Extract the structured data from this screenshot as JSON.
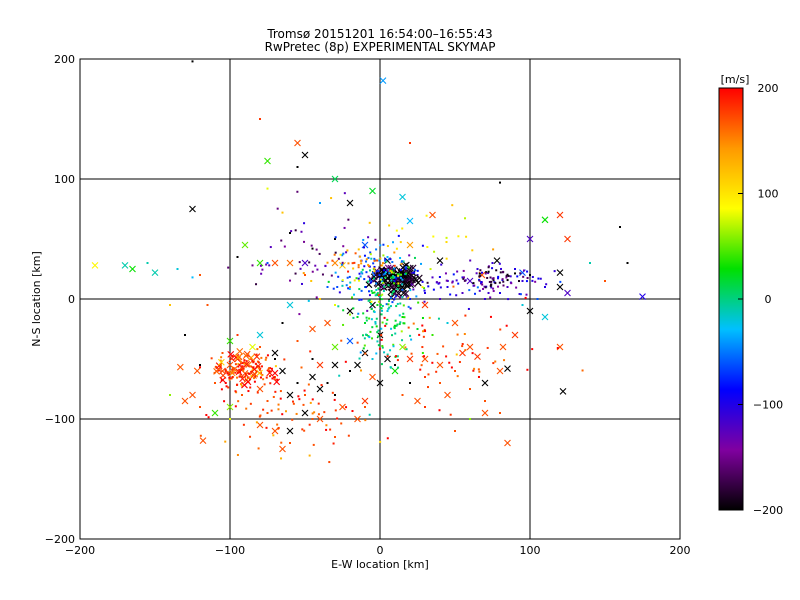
{
  "chart_data": {
    "type": "scatter",
    "title": "Tromsø 20151201 16:54:00–16:55:43",
    "subtitle": "RwPretec (8p) EXPERIMENTAL SKYMAP",
    "xlabel": "E-W location [km]",
    "ylabel": "N-S location [km]",
    "xlim": [
      -200,
      200
    ],
    "ylim": [
      -200,
      200
    ],
    "xticks": [
      "−200",
      "−100",
      "0",
      "100",
      "200"
    ],
    "yticks": [
      "−200",
      "−100",
      "0",
      "100",
      "200"
    ],
    "grid": true,
    "colorbar": {
      "label": "[m/s]",
      "range": [
        -200,
        200
      ],
      "ticks": [
        "200",
        "100",
        "0",
        "−100",
        "−200"
      ],
      "colors": [
        "#000000",
        "#8000a0",
        "#0000ff",
        "#00c0ff",
        "#00e000",
        "#ffff00",
        "#ff9900",
        "#ff0000"
      ]
    },
    "series": [
      {
        "marker": "x",
        "points": [
          [
            2,
            182,
            -40
          ],
          [
            -30,
            100,
            10
          ],
          [
            -20,
            80,
            -200
          ],
          [
            -5,
            90,
            20
          ],
          [
            15,
            85,
            -20
          ],
          [
            35,
            70,
            170
          ],
          [
            20,
            65,
            -30
          ],
          [
            120,
            70,
            180
          ],
          [
            110,
            66,
            30
          ],
          [
            125,
            50,
            180
          ],
          [
            -75,
            115,
            40
          ],
          [
            -50,
            120,
            -200
          ],
          [
            -55,
            130,
            170
          ],
          [
            -125,
            75,
            -200
          ],
          [
            -90,
            45,
            50
          ],
          [
            -50,
            30,
            -120
          ],
          [
            -30,
            30,
            150
          ],
          [
            -25,
            28,
            120
          ],
          [
            -10,
            45,
            -60
          ],
          [
            20,
            45,
            140
          ],
          [
            40,
            32,
            -200
          ],
          [
            68,
            20,
            170
          ],
          [
            60,
            15,
            -120
          ],
          [
            78,
            32,
            -200
          ],
          [
            95,
            22,
            -60
          ],
          [
            100,
            50,
            -120
          ],
          [
            120,
            22,
            -200
          ],
          [
            120,
            10,
            -200
          ],
          [
            125,
            5,
            -120
          ],
          [
            175,
            2,
            -100
          ],
          [
            -190,
            28,
            90
          ],
          [
            -170,
            28,
            -10
          ],
          [
            -165,
            25,
            30
          ],
          [
            -150,
            22,
            -10
          ],
          [
            -80,
            30,
            40
          ],
          [
            -70,
            30,
            170
          ],
          [
            -60,
            30,
            160
          ],
          [
            -60,
            -5,
            -20
          ],
          [
            -85,
            -40,
            80
          ],
          [
            -80,
            -30,
            -20
          ],
          [
            -100,
            -35,
            40
          ],
          [
            -95,
            -50,
            190
          ],
          [
            -70,
            -45,
            -200
          ],
          [
            -65,
            -60,
            -200
          ],
          [
            -45,
            -65,
            -200
          ],
          [
            -40,
            -55,
            180
          ],
          [
            -30,
            -40,
            50
          ],
          [
            -20,
            -35,
            -60
          ],
          [
            -10,
            -45,
            -200
          ],
          [
            -5,
            -65,
            170
          ],
          [
            0,
            -70,
            -200
          ],
          [
            10,
            -60,
            30
          ],
          [
            20,
            -50,
            180
          ],
          [
            30,
            -50,
            170
          ],
          [
            40,
            -55,
            170
          ],
          [
            55,
            -45,
            180
          ],
          [
            60,
            -40,
            170
          ],
          [
            65,
            -48,
            180
          ],
          [
            70,
            -70,
            -200
          ],
          [
            80,
            -60,
            170
          ],
          [
            82,
            -40,
            170
          ],
          [
            85,
            -58,
            -200
          ],
          [
            90,
            -30,
            180
          ],
          [
            110,
            -15,
            -20
          ],
          [
            100,
            -10,
            -200
          ],
          [
            120,
            -40,
            170
          ],
          [
            122,
            -77,
            -200
          ],
          [
            -125,
            -80,
            170
          ],
          [
            -130,
            -85,
            170
          ],
          [
            -118,
            -118,
            170
          ],
          [
            -110,
            -95,
            40
          ],
          [
            -100,
            -90,
            60
          ],
          [
            -80,
            -105,
            170
          ],
          [
            -70,
            -110,
            170
          ],
          [
            -65,
            -125,
            170
          ],
          [
            -60,
            -110,
            -200
          ],
          [
            -50,
            -95,
            -200
          ],
          [
            -40,
            -100,
            170
          ],
          [
            -25,
            -90,
            170
          ],
          [
            -15,
            -100,
            170
          ],
          [
            -10,
            -85,
            180
          ],
          [
            25,
            -85,
            170
          ],
          [
            45,
            -80,
            170
          ],
          [
            70,
            -95,
            170
          ],
          [
            85,
            -120,
            170
          ],
          [
            -100,
            -55,
            170
          ],
          [
            -105,
            -60,
            170
          ],
          [
            -90,
            -62,
            170
          ],
          [
            -80,
            -75,
            170
          ],
          [
            -30,
            -55,
            -200
          ],
          [
            -40,
            -75,
            -200
          ],
          [
            -5,
            -5,
            -200
          ],
          [
            -20,
            -10,
            -200
          ],
          [
            30,
            -5,
            180
          ],
          [
            50,
            -20,
            170
          ],
          [
            -45,
            -25,
            170
          ],
          [
            -35,
            -20,
            170
          ],
          [
            -60,
            -80,
            -200
          ],
          [
            5,
            -50,
            -200
          ],
          [
            15,
            -40,
            60
          ],
          [
            0,
            -30,
            -200
          ],
          [
            -15,
            -55,
            -200
          ]
        ]
      },
      {
        "marker": "dot",
        "points": [
          [
            -125,
            198,
            -200
          ],
          [
            -80,
            150,
            180
          ],
          [
            -55,
            110,
            -200
          ],
          [
            20,
            130,
            180
          ],
          [
            80,
            97,
            -200
          ],
          [
            -75,
            92,
            80
          ],
          [
            -40,
            80,
            -40
          ],
          [
            -65,
            72,
            120
          ],
          [
            -30,
            50,
            -200
          ],
          [
            -45,
            42,
            -200
          ],
          [
            -60,
            55,
            -200
          ],
          [
            -75,
            30,
            -60
          ],
          [
            -95,
            35,
            -200
          ],
          [
            -85,
            28,
            -150
          ],
          [
            -50,
            20,
            170
          ],
          [
            -25,
            15,
            -60
          ],
          [
            -20,
            10,
            150
          ],
          [
            -10,
            10,
            -10
          ],
          [
            -5,
            5,
            20
          ],
          [
            5,
            35,
            -30
          ],
          [
            10,
            25,
            -120
          ],
          [
            25,
            20,
            -110
          ],
          [
            35,
            18,
            -120
          ],
          [
            45,
            10,
            -100
          ],
          [
            55,
            18,
            -100
          ],
          [
            65,
            25,
            -110
          ],
          [
            75,
            30,
            -110
          ],
          [
            90,
            25,
            -100
          ],
          [
            95,
            15,
            -110
          ],
          [
            100,
            20,
            -200
          ],
          [
            110,
            10,
            -100
          ],
          [
            85,
            10,
            -120
          ],
          [
            140,
            30,
            -10
          ],
          [
            150,
            15,
            170
          ],
          [
            160,
            60,
            -200
          ],
          [
            165,
            30,
            -200
          ],
          [
            -140,
            -80,
            60
          ],
          [
            -120,
            -55,
            -200
          ],
          [
            -105,
            -45,
            170
          ],
          [
            -110,
            -70,
            170
          ],
          [
            -92,
            -80,
            170
          ],
          [
            -75,
            -85,
            170
          ],
          [
            -70,
            -65,
            170
          ],
          [
            -55,
            -70,
            -200
          ],
          [
            -50,
            -80,
            170
          ],
          [
            -45,
            -50,
            -200
          ],
          [
            -35,
            -70,
            -200
          ],
          [
            -30,
            -80,
            -200
          ],
          [
            -20,
            -60,
            -200
          ],
          [
            -5,
            -50,
            -20
          ],
          [
            10,
            -55,
            -200
          ],
          [
            20,
            -70,
            -200
          ],
          [
            30,
            -65,
            180
          ],
          [
            40,
            -70,
            170
          ],
          [
            50,
            -60,
            170
          ],
          [
            60,
            -75,
            170
          ],
          [
            70,
            -85,
            170
          ],
          [
            80,
            -95,
            170
          ],
          [
            60,
            -100,
            60
          ],
          [
            50,
            -110,
            170
          ],
          [
            30,
            -90,
            180
          ],
          [
            15,
            -80,
            170
          ],
          [
            -10,
            -90,
            170
          ],
          [
            -30,
            -115,
            170
          ],
          [
            -45,
            -100,
            170
          ],
          [
            -60,
            -120,
            170
          ],
          [
            -75,
            -95,
            170
          ],
          [
            -100,
            -100,
            80
          ],
          [
            -120,
            -90,
            170
          ],
          [
            -65,
            -20,
            -200
          ],
          [
            -55,
            -35,
            170
          ],
          [
            -70,
            -50,
            -200
          ],
          [
            -80,
            -40,
            170
          ],
          [
            -95,
            -30,
            180
          ],
          [
            -10,
            -20,
            20
          ],
          [
            -15,
            -15,
            20
          ],
          [
            5,
            -10,
            -20
          ],
          [
            15,
            -15,
            30
          ],
          [
            25,
            -25,
            20
          ],
          [
            35,
            -30,
            40
          ],
          [
            45,
            -20,
            -20
          ],
          [
            -30,
            -5,
            80
          ],
          [
            -40,
            0,
            120
          ],
          [
            -35,
            10,
            -60
          ],
          [
            20,
            0,
            -80
          ],
          [
            30,
            5,
            -100
          ],
          [
            40,
            0,
            -120
          ],
          [
            55,
            5,
            -120
          ],
          [
            70,
            0,
            -110
          ],
          [
            80,
            5,
            -100
          ],
          [
            95,
            -5,
            -20
          ],
          [
            105,
            0,
            -60
          ],
          [
            -155,
            30,
            -10
          ],
          [
            -135,
            25,
            -20
          ],
          [
            -125,
            18,
            -30
          ],
          [
            -120,
            20,
            170
          ],
          [
            -140,
            -5,
            120
          ],
          [
            -115,
            -5,
            170
          ],
          [
            -130,
            -30,
            -200
          ]
        ]
      }
    ],
    "clusters": [
      {
        "center": [
          10,
          17
        ],
        "spread": [
          8,
          6
        ],
        "count": 120,
        "value": -200,
        "marker": "x"
      },
      {
        "center": [
          0,
          20
        ],
        "spread": [
          14,
          14
        ],
        "count": 110,
        "value": -60,
        "marker": "dot"
      },
      {
        "center": [
          0,
          -8
        ],
        "spread": [
          12,
          22
        ],
        "count": 150,
        "value": 10,
        "marker": "dot"
      },
      {
        "center": [
          -10,
          30
        ],
        "spread": [
          12,
          6
        ],
        "count": 30,
        "value": 140,
        "marker": "dot"
      },
      {
        "center": [
          60,
          15
        ],
        "spread": [
          35,
          8
        ],
        "count": 90,
        "value": -110,
        "marker": "dot"
      },
      {
        "center": [
          75,
          17
        ],
        "spread": [
          10,
          4
        ],
        "count": 45,
        "value": -190,
        "marker": "dot"
      },
      {
        "center": [
          -90,
          -60
        ],
        "spread": [
          10,
          8
        ],
        "count": 140,
        "value": 180,
        "marker": "dot"
      },
      {
        "center": [
          -88,
          -58
        ],
        "spread": [
          12,
          8
        ],
        "count": 35,
        "value": 180,
        "marker": "x"
      },
      {
        "center": [
          -60,
          -100
        ],
        "spread": [
          25,
          15
        ],
        "count": 70,
        "value": 180,
        "marker": "dot"
      },
      {
        "center": [
          40,
          -45
        ],
        "spread": [
          35,
          20
        ],
        "count": 70,
        "value": 180,
        "marker": "dot"
      },
      {
        "center": [
          -45,
          30
        ],
        "spread": [
          25,
          20
        ],
        "count": 45,
        "value": -150,
        "marker": "dot"
      },
      {
        "center": [
          10,
          40
        ],
        "spread": [
          25,
          20
        ],
        "count": 40,
        "value": 100,
        "marker": "dot"
      }
    ]
  }
}
